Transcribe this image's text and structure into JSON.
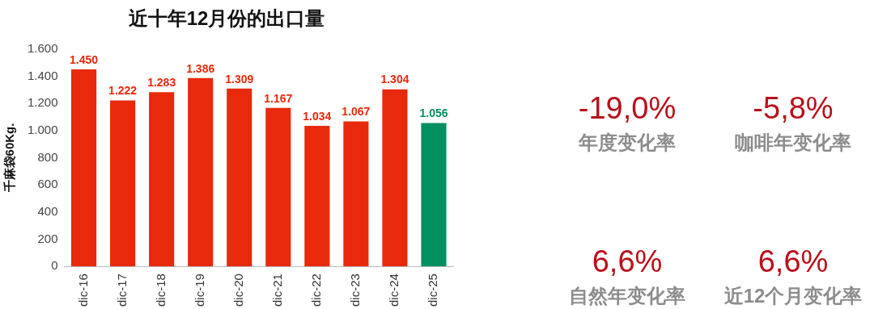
{
  "chart_data": [
    {
      "type": "bar",
      "title": "近十年12月份的出口量",
      "ylabel": "千麻袋60Kg.",
      "categories": [
        "dic-16",
        "dic-17",
        "dic-18",
        "dic-19",
        "dic-20",
        "dic-21",
        "dic-22",
        "dic-23",
        "dic-24",
        "dic-25"
      ],
      "values": [
        1450,
        1222,
        1283,
        1386,
        1309,
        1167,
        1034,
        1067,
        1304,
        1056
      ],
      "colors": [
        "#e8290b",
        "#e8290b",
        "#e8290b",
        "#e8290b",
        "#e8290b",
        "#e8290b",
        "#e8290b",
        "#e8290b",
        "#e8290b",
        "#009060"
      ],
      "value_labels": [
        "1.450",
        "1.222",
        "1.283",
        "1.386",
        "1.309",
        "1.167",
        "1.034",
        "1.067",
        "1.304",
        "1.056"
      ],
      "ylim": [
        0,
        1600
      ],
      "yticks": [
        0,
        {
          "value": 200,
          "label": "200"
        },
        {
          "value": 400,
          "label": "400"
        },
        {
          "value": 600,
          "label": "600"
        },
        {
          "value": 800,
          "label": "800"
        },
        {
          "value": 1000,
          "label": "1.000"
        },
        {
          "value": 1200,
          "label": "1.200"
        },
        {
          "value": 1400,
          "label": "1.400"
        },
        {
          "value": 1600,
          "label": "1.600"
        }
      ],
      "grid": false,
      "legend": false
    },
    {
      "type": "other",
      "annotations": [
        "-19,0%",
        "年度变化率",
        "-5,8%",
        "咖啡年变化率",
        "6,6%",
        "自然年变化率",
        "6,6%",
        "近12个月变化率"
      ]
    }
  ]
}
